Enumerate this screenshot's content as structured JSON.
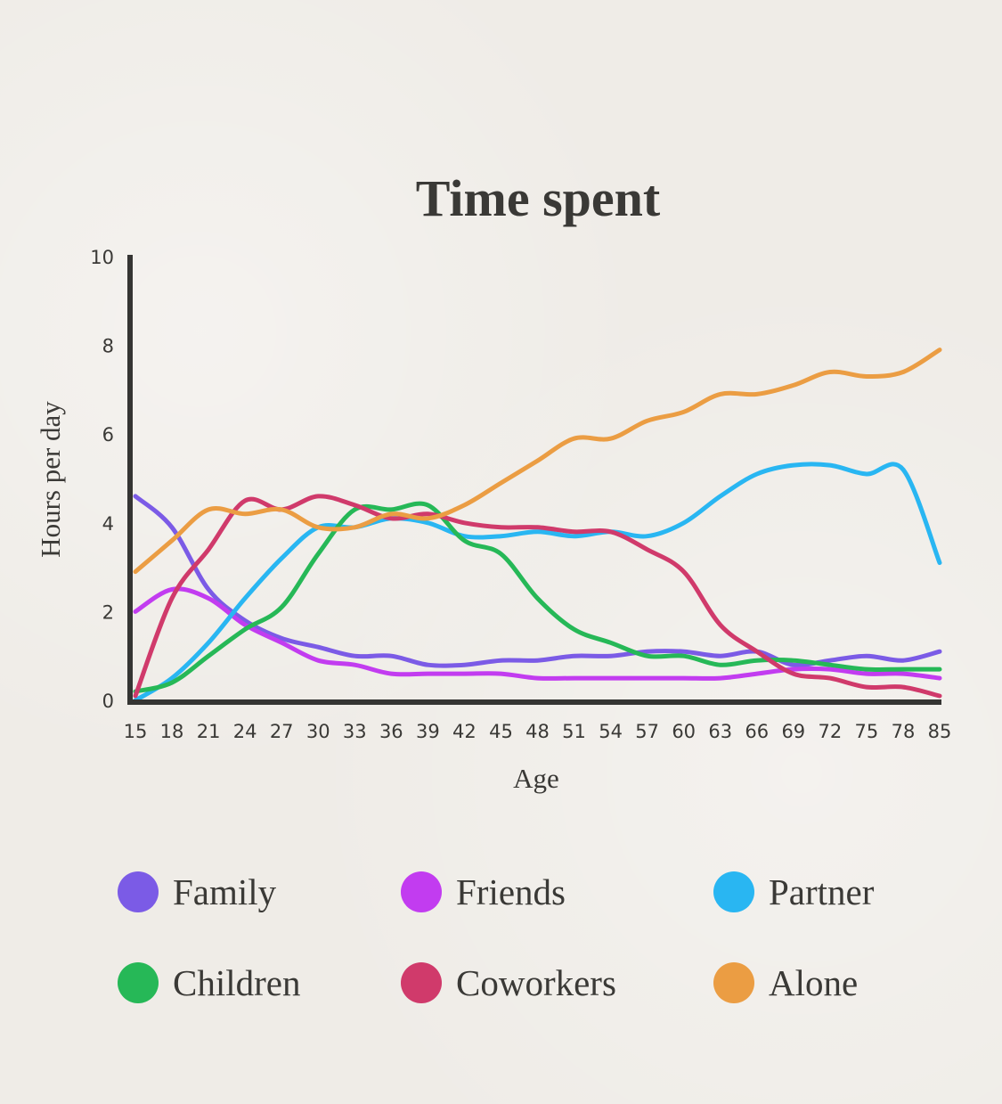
{
  "chart_data": {
    "type": "line",
    "title": "Time spent",
    "xlabel": "Age",
    "ylabel": "Hours per day",
    "ylim": [
      0,
      10
    ],
    "yticks": [
      "0",
      "2",
      "4",
      "6",
      "8",
      "10"
    ],
    "xticks": [
      "15",
      "18",
      "21",
      "24",
      "27",
      "30",
      "33",
      "36",
      "39",
      "42",
      "45",
      "48",
      "51",
      "54",
      "57",
      "60",
      "63",
      "66",
      "69",
      "72",
      "75",
      "78",
      "85"
    ],
    "x": [
      15,
      18,
      21,
      24,
      27,
      30,
      33,
      36,
      39,
      42,
      45,
      48,
      51,
      54,
      57,
      60,
      63,
      66,
      69,
      72,
      75,
      78,
      85
    ],
    "grid": false,
    "legend_position": "bottom",
    "series": [
      {
        "name": "Family",
        "color": "#7b5be6",
        "values": [
          4.6,
          3.9,
          2.5,
          1.8,
          1.4,
          1.2,
          1.0,
          1.0,
          0.8,
          0.8,
          0.9,
          0.9,
          1.0,
          1.0,
          1.1,
          1.1,
          1.0,
          1.1,
          0.8,
          0.9,
          1.0,
          0.9,
          1.1
        ]
      },
      {
        "name": "Friends",
        "color": "#c23cf0",
        "values": [
          2.0,
          2.5,
          2.3,
          1.7,
          1.3,
          0.9,
          0.8,
          0.6,
          0.6,
          0.6,
          0.6,
          0.5,
          0.5,
          0.5,
          0.5,
          0.5,
          0.5,
          0.6,
          0.7,
          0.7,
          0.6,
          0.6,
          0.5
        ]
      },
      {
        "name": "Partner",
        "color": "#29b6f2",
        "values": [
          0.0,
          0.5,
          1.3,
          2.3,
          3.2,
          3.9,
          3.9,
          4.1,
          4.0,
          3.7,
          3.7,
          3.8,
          3.7,
          3.8,
          3.7,
          4.0,
          4.6,
          5.1,
          5.3,
          5.3,
          5.1,
          5.2,
          3.1
        ]
      },
      {
        "name": "Children",
        "color": "#26b857",
        "values": [
          0.2,
          0.4,
          1.0,
          1.6,
          2.1,
          3.3,
          4.3,
          4.3,
          4.4,
          3.6,
          3.3,
          2.3,
          1.6,
          1.3,
          1.0,
          1.0,
          0.8,
          0.9,
          0.9,
          0.8,
          0.7,
          0.7,
          0.7
        ]
      },
      {
        "name": "Coworkers",
        "color": "#d03a6b",
        "values": [
          0.1,
          2.3,
          3.4,
          4.5,
          4.3,
          4.6,
          4.4,
          4.1,
          4.2,
          4.0,
          3.9,
          3.9,
          3.8,
          3.8,
          3.4,
          2.9,
          1.7,
          1.1,
          0.6,
          0.5,
          0.3,
          0.3,
          0.1
        ]
      },
      {
        "name": "Alone",
        "color": "#eb9d43",
        "values": [
          2.9,
          3.6,
          4.3,
          4.2,
          4.3,
          3.9,
          3.9,
          4.2,
          4.1,
          4.4,
          4.9,
          5.4,
          5.9,
          5.9,
          6.3,
          6.5,
          6.9,
          6.9,
          7.1,
          7.4,
          7.3,
          7.4,
          7.9
        ]
      }
    ]
  },
  "colors": {
    "axis": "#353533",
    "text": "#3a3936",
    "background": "#efece7"
  }
}
